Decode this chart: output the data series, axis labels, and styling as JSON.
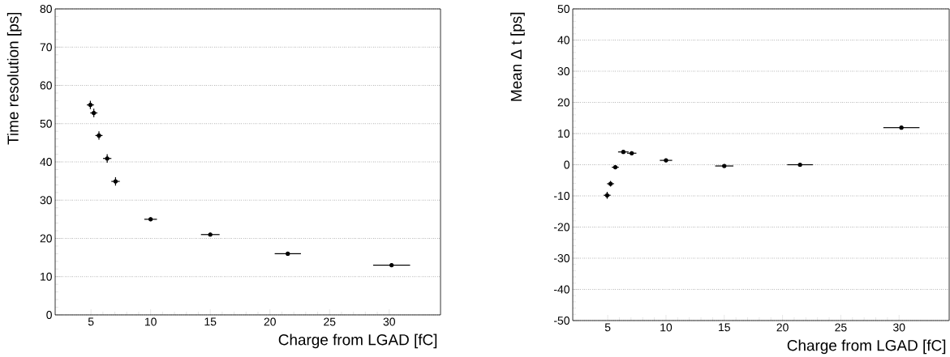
{
  "chart_data": [
    {
      "type": "scatter",
      "xlabel": "Charge from LGAD [fC]",
      "ylabel": "Time resolution [ps]",
      "color": "#000000",
      "marker": "circle",
      "grid": "y",
      "x": [
        4.95,
        5.24,
        5.67,
        6.36,
        7.06,
        10.0,
        15.0,
        21.5,
        30.2
      ],
      "values": [
        54.9,
        52.8,
        46.9,
        40.9,
        34.9,
        25.0,
        21.0,
        16.0,
        13.0
      ],
      "errors": [
        1.1,
        1.1,
        1.1,
        1.1,
        1.1,
        null,
        null,
        null,
        null
      ],
      "xerrors": [
        0.3,
        0.3,
        0.3,
        0.35,
        0.35,
        0.53,
        0.78,
        1.1,
        1.55
      ],
      "xlim": [
        2,
        34.3
      ],
      "ylim": [
        0,
        80
      ],
      "xticks": [
        5,
        10,
        15,
        20,
        25,
        30
      ],
      "yticks": [
        0,
        10,
        20,
        30,
        40,
        50,
        60,
        70,
        80
      ]
    },
    {
      "type": "scatter",
      "xlabel": "Charge from LGAD [fC]",
      "ylabel": "Mean Δ t [ps]",
      "color": "#000000",
      "marker": "circle",
      "grid": "y",
      "x": [
        4.95,
        5.24,
        5.65,
        6.34,
        7.06,
        10.0,
        15.0,
        21.5,
        30.2
      ],
      "values": [
        -9.8,
        -6.1,
        -0.8,
        4.1,
        3.7,
        1.4,
        -0.4,
        0.0,
        11.9
      ],
      "errors": [
        1.1,
        0.9,
        0.5,
        0.5,
        0.5,
        null,
        null,
        null,
        null
      ],
      "xerrors": [
        0.3,
        0.3,
        0.3,
        0.45,
        0.4,
        0.53,
        0.78,
        1.1,
        1.55
      ],
      "xlim": [
        2,
        34.3
      ],
      "ylim": [
        -50,
        50
      ],
      "xticks": [
        5,
        10,
        15,
        20,
        25,
        30
      ],
      "yticks": [
        -50,
        -40,
        -30,
        -20,
        -10,
        0,
        10,
        20,
        30,
        40,
        50
      ]
    }
  ]
}
